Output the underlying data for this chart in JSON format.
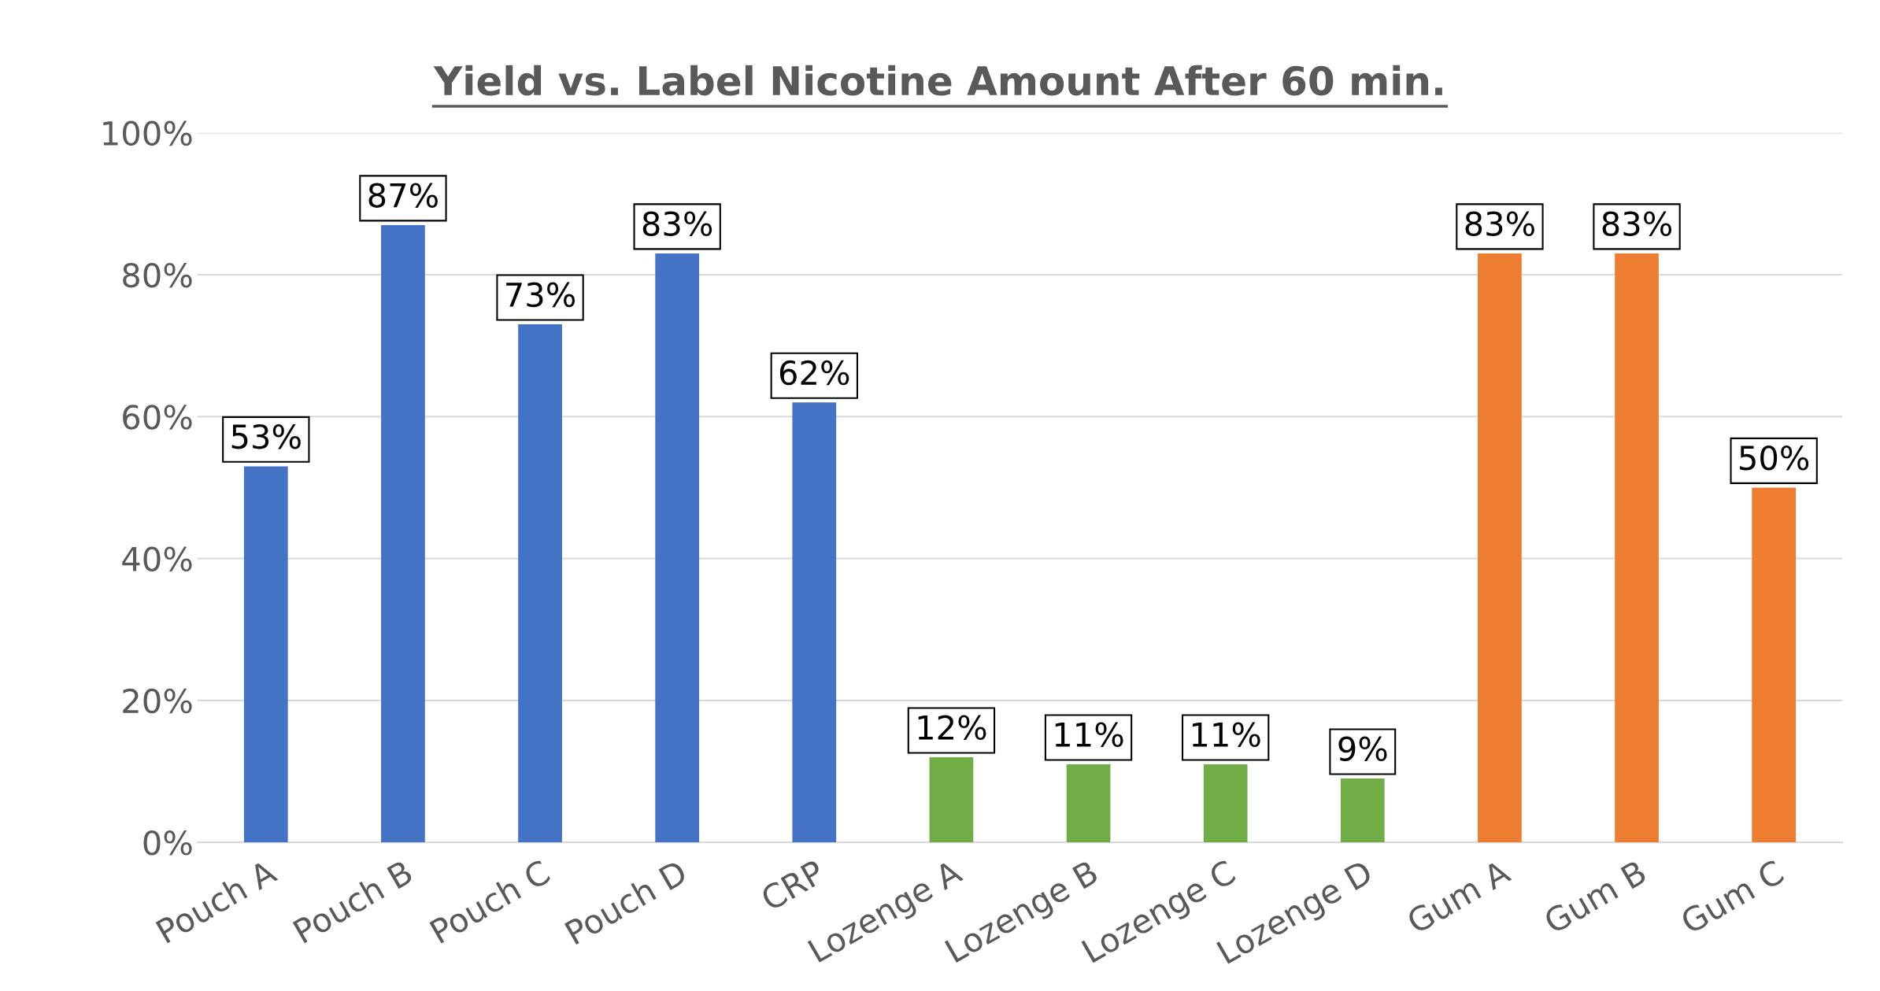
{
  "chart_data": {
    "type": "bar",
    "title": "Yield vs. Label Nicotine Amount After 60 min.",
    "categories": [
      "Pouch A",
      "Pouch B",
      "Pouch C",
      "Pouch D",
      "CRP",
      "Lozenge A",
      "Lozenge B",
      "Lozenge C",
      "Lozenge D",
      "Gum A",
      "Gum B",
      "Gum C"
    ],
    "values": [
      53,
      87,
      73,
      83,
      62,
      12,
      11,
      11,
      9,
      83,
      83,
      50
    ],
    "value_labels": [
      "53%",
      "87%",
      "73%",
      "83%",
      "62%",
      "12%",
      "11%",
      "11%",
      "9%",
      "83%",
      "83%",
      "50%"
    ],
    "colors": [
      "#4472c4",
      "#4472c4",
      "#4472c4",
      "#4472c4",
      "#4472c4",
      "#70ad47",
      "#70ad47",
      "#70ad47",
      "#70ad47",
      "#ed7d31",
      "#ed7d31",
      "#ed7d31"
    ],
    "ylim": [
      0,
      100
    ],
    "yticks": [
      {
        "value": 0,
        "label": "0%"
      },
      {
        "value": 20,
        "label": "20%"
      },
      {
        "value": 40,
        "label": "40%"
      },
      {
        "value": 60,
        "label": "60%"
      },
      {
        "value": 80,
        "label": "80%"
      },
      {
        "value": 100,
        "label": "100%"
      }
    ],
    "grid": "y",
    "legend": false
  }
}
